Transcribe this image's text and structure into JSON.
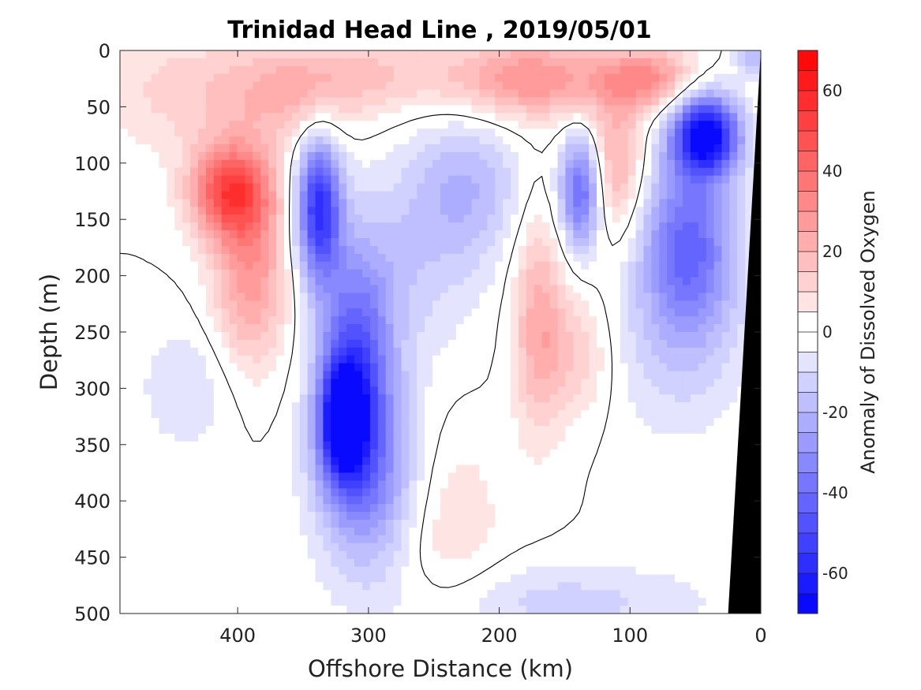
{
  "chart_data": {
    "type": "heatmap",
    "subtype": "filled-contour",
    "title": "Trinidad Head Line , 2019/05/01",
    "xlabel": "Offshore Distance (km)",
    "ylabel": "Depth (m)",
    "colorbar_label": "Anomaly of Dissolved Oxygen",
    "xlim": [
      490,
      0
    ],
    "ylim": [
      500,
      0
    ],
    "y_reversed": true,
    "x_reversed": true,
    "x_ticks": [
      400,
      300,
      200,
      100,
      0
    ],
    "y_ticks": [
      0,
      50,
      100,
      150,
      200,
      250,
      300,
      350,
      400,
      450,
      500
    ],
    "colorbar_range": [
      -70,
      70
    ],
    "colorbar_ticks": [
      60,
      40,
      20,
      0,
      -20,
      -40,
      -60
    ],
    "colorbar_levels": 28,
    "colormap": {
      "negative": "#0000ff",
      "zero": "#ffffff",
      "positive": "#ff0000"
    },
    "zero_contour": true,
    "seafloor_color": "#000000",
    "seafloor": [
      [
        0,
        0
      ],
      [
        25,
        500
      ],
      [
        0,
        500
      ]
    ],
    "anomaly_features": [
      {
        "x": 405,
        "depth": 125,
        "value": 48,
        "sigma_x": 22,
        "sigma_y": 30
      },
      {
        "x": 390,
        "depth": 200,
        "value": 28,
        "sigma_x": 20,
        "sigma_y": 55
      },
      {
        "x": 440,
        "depth": 35,
        "value": 12,
        "sigma_x": 50,
        "sigma_y": 40
      },
      {
        "x": 360,
        "depth": 40,
        "value": 16,
        "sigma_x": 35,
        "sigma_y": 30
      },
      {
        "x": 300,
        "depth": 20,
        "value": 14,
        "sigma_x": 45,
        "sigma_y": 25
      },
      {
        "x": 175,
        "depth": 25,
        "value": 30,
        "sigma_x": 45,
        "sigma_y": 25
      },
      {
        "x": 85,
        "depth": 25,
        "value": 28,
        "sigma_x": 25,
        "sigma_y": 20
      },
      {
        "x": 110,
        "depth": 100,
        "value": 22,
        "sigma_x": 15,
        "sigma_y": 45
      },
      {
        "x": 170,
        "depth": 240,
        "value": 22,
        "sigma_x": 14,
        "sigma_y": 70
      },
      {
        "x": 140,
        "depth": 270,
        "value": 14,
        "sigma_x": 20,
        "sigma_y": 40
      },
      {
        "x": 240,
        "depth": 420,
        "value": 10,
        "sigma_x": 30,
        "sigma_y": 60
      },
      {
        "x": 320,
        "depth": 330,
        "value": -55,
        "sigma_x": 12,
        "sigma_y": 35
      },
      {
        "x": 338,
        "depth": 140,
        "value": -55,
        "sigma_x": 12,
        "sigma_y": 45
      },
      {
        "x": 310,
        "depth": 280,
        "value": -42,
        "sigma_x": 20,
        "sigma_y": 70
      },
      {
        "x": 300,
        "depth": 380,
        "value": -30,
        "sigma_x": 28,
        "sigma_y": 60
      },
      {
        "x": 225,
        "depth": 120,
        "value": -18,
        "sigma_x": 30,
        "sigma_y": 45
      },
      {
        "x": 270,
        "depth": 190,
        "value": -12,
        "sigma_x": 40,
        "sigma_y": 60
      },
      {
        "x": 138,
        "depth": 125,
        "value": -42,
        "sigma_x": 11,
        "sigma_y": 35
      },
      {
        "x": 42,
        "depth": 75,
        "value": -70,
        "sigma_x": 18,
        "sigma_y": 25
      },
      {
        "x": 55,
        "depth": 170,
        "value": -40,
        "sigma_x": 25,
        "sigma_y": 55
      },
      {
        "x": 65,
        "depth": 260,
        "value": -12,
        "sigma_x": 40,
        "sigma_y": 60
      },
      {
        "x": 150,
        "depth": 490,
        "value": -12,
        "sigma_x": 80,
        "sigma_y": 25
      },
      {
        "x": 440,
        "depth": 300,
        "value": -10,
        "sigma_x": 25,
        "sigma_y": 40
      },
      {
        "x": 8,
        "depth": 5,
        "value": -20,
        "sigma_x": 8,
        "sigma_y": 12
      }
    ]
  }
}
